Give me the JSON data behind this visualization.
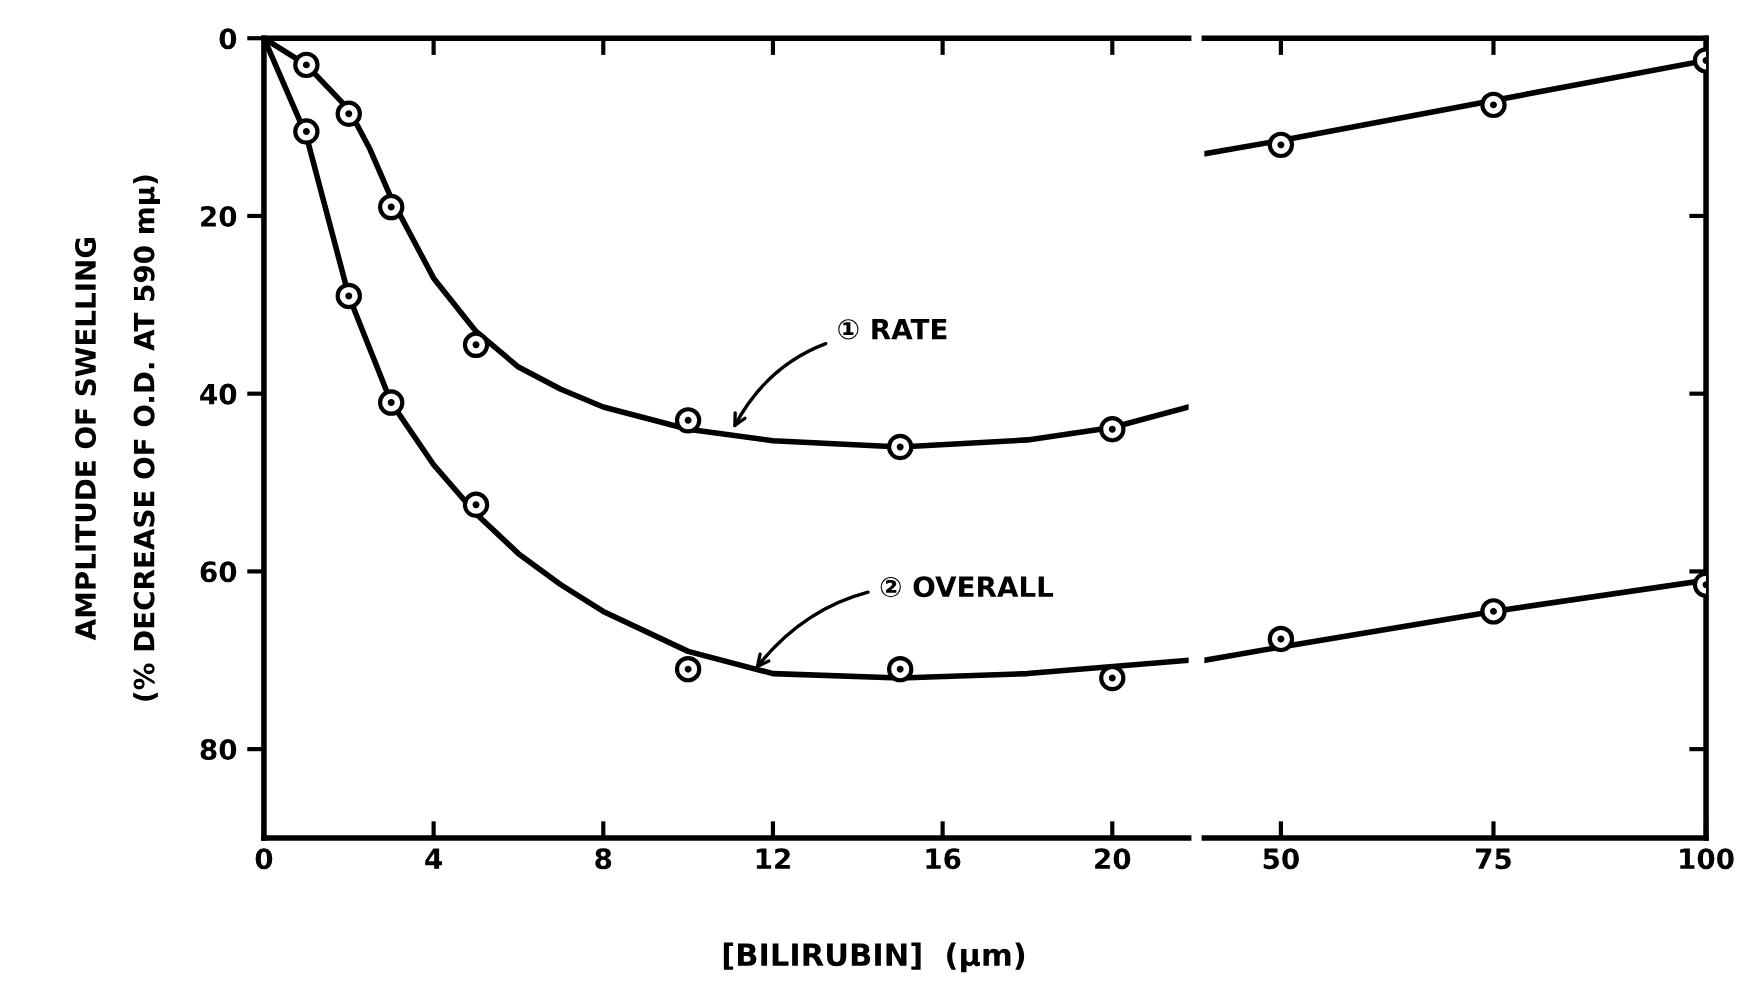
{
  "chart_data": [
    {
      "type": "line",
      "xlabel": "[BILIRUBIN]  (μm)",
      "ylabel": "AMPLITUDE OF SWELLING\n(% DECREASE OF O.D. AT 590 mμ)",
      "xlim": [
        0,
        21.8
      ],
      "xticks": [
        0,
        4,
        8,
        12,
        16,
        20
      ],
      "ylim": [
        90,
        0
      ],
      "yticks": [
        0,
        20,
        40,
        60,
        80
      ],
      "grid": false,
      "series": [
        {
          "type": "scatter",
          "color": "#000000",
          "marker": "circle",
          "x": [
            1,
            2,
            3,
            5,
            10,
            15,
            20
          ],
          "values": [
            3,
            8.5,
            19,
            34.5,
            43,
            46,
            44
          ]
        },
        {
          "type": "scatter",
          "color": "#000000",
          "marker": "circle",
          "x": [
            1,
            2,
            3,
            5,
            10,
            15,
            20
          ],
          "values": [
            10.5,
            29,
            41,
            52.5,
            71,
            71,
            72
          ]
        },
        {
          "color": "#000000",
          "line_style": "solid",
          "x": [
            0,
            1,
            2,
            2.5,
            3,
            4,
            5,
            6,
            7,
            8,
            10,
            12,
            15,
            18,
            20,
            21.8
          ],
          "values": [
            0,
            3,
            8,
            12.5,
            18,
            27,
            33,
            37,
            39.5,
            41.5,
            44,
            45.3,
            46,
            45.2,
            43.8,
            41.5
          ]
        },
        {
          "color": "#000000",
          "line_style": "solid",
          "x": [
            0,
            1,
            1.5,
            2,
            3,
            4,
            5,
            6,
            7,
            8,
            10,
            12,
            15,
            18,
            21.8
          ],
          "values": [
            0,
            11,
            20,
            29,
            41,
            48,
            53.5,
            58,
            61.5,
            64.5,
            69,
            71.5,
            72,
            71.5,
            70
          ]
        }
      ],
      "annotations": [
        {
          "text": "① RATE",
          "x": 11,
          "y": 44.5
        },
        {
          "text": "② OVERALL",
          "x": 11.5,
          "y": 71.5
        }
      ]
    },
    {
      "type": "line",
      "xlim": [
        41,
        100
      ],
      "xticks": [
        50,
        75,
        100
      ],
      "ylim": [
        90,
        0
      ],
      "yticks": [
        {
          "value": 20,
          "label": null
        },
        {
          "value": 40,
          "label": null
        },
        {
          "value": 60,
          "label": null
        },
        {
          "value": 80,
          "label": null
        }
      ],
      "tick_labels": "x",
      "grid": false,
      "series": [
        {
          "type": "scatter",
          "color": "#000000",
          "marker": "circle",
          "x": [
            50,
            75,
            100
          ],
          "values": [
            12,
            7.5,
            2.5
          ]
        },
        {
          "type": "scatter",
          "color": "#000000",
          "marker": "circle",
          "x": [
            50,
            75,
            100
          ],
          "values": [
            67.6,
            64.5,
            61.5
          ]
        },
        {
          "color": "#000000",
          "line_style": "solid",
          "x": [
            41,
            50,
            75,
            100
          ],
          "values": [
            13,
            11.5,
            7,
            2.5
          ]
        },
        {
          "color": "#000000",
          "line_style": "solid",
          "x": [
            41,
            50,
            75,
            100
          ],
          "values": [
            70,
            68.5,
            64.5,
            61
          ]
        }
      ]
    }
  ]
}
